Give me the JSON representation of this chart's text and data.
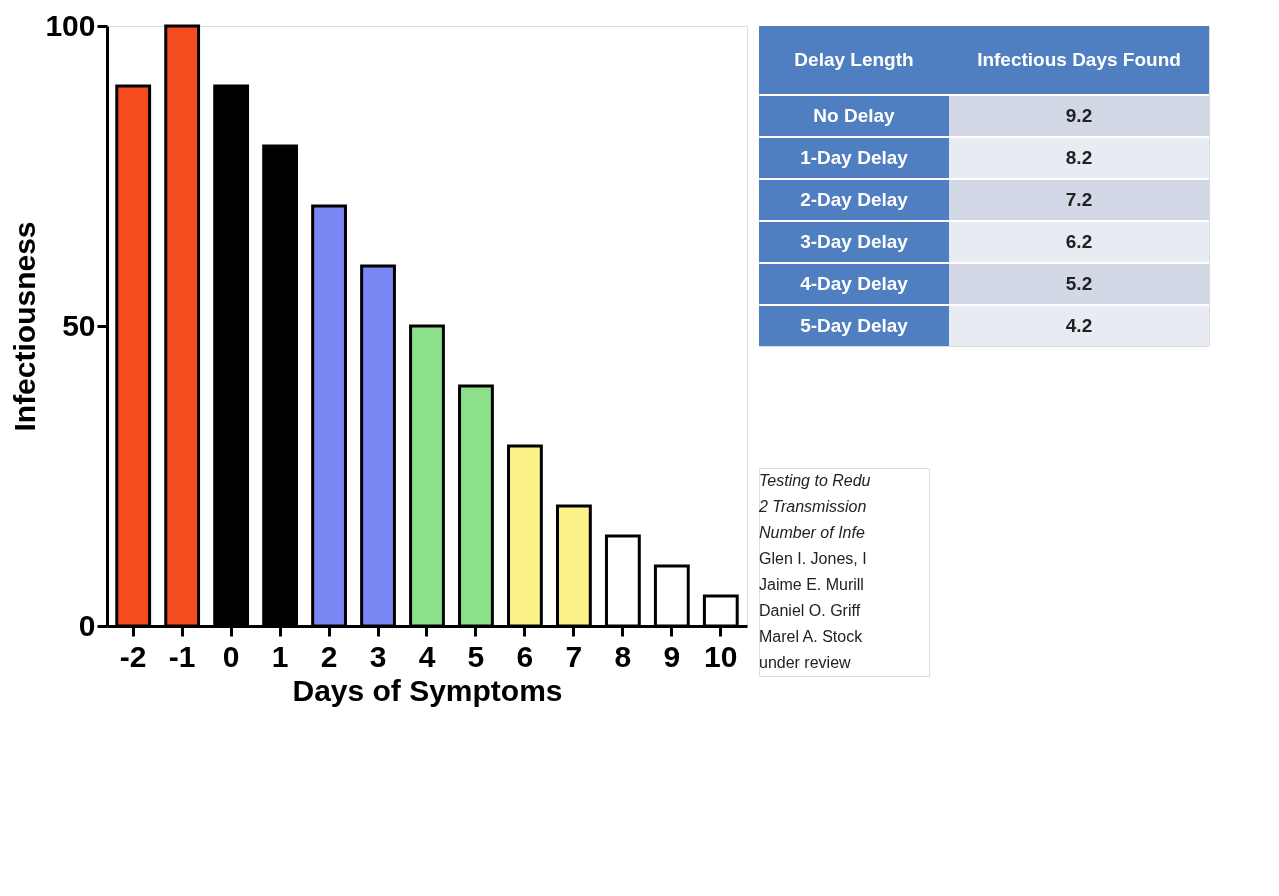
{
  "chart_data": {
    "type": "bar",
    "xlabel": "Days of Symptoms",
    "ylabel": "Infectiousness",
    "categories": [
      "-2",
      "-1",
      "0",
      "1",
      "2",
      "3",
      "4",
      "5",
      "6",
      "7",
      "8",
      "9",
      "10"
    ],
    "values": [
      90,
      100,
      90,
      80,
      70,
      60,
      50,
      40,
      30,
      20,
      15,
      10,
      5
    ],
    "colors": [
      "#f44b1f",
      "#f44b1f",
      "#000000",
      "#000000",
      "#7b86f5",
      "#7b86f5",
      "#8de08a",
      "#8de08a",
      "#fbf38a",
      "#fbf38a",
      "#ffffff",
      "#ffffff",
      "#ffffff"
    ],
    "ylim": [
      0,
      100
    ],
    "yticks": [
      0,
      50,
      100
    ],
    "grid": false,
    "annotations": [
      "Delay Length",
      "Infectious Days Found",
      "No Delay",
      "9.2",
      "1-Day Delay",
      "8.2",
      "2-Day Delay",
      "7.2",
      "3-Day Delay",
      "6.2",
      "4-Day Delay",
      "5.2",
      "5-Day Delay",
      "4.2",
      "Testing to Redu",
      "2 Transmission",
      "Number of Infe",
      "Glen I. Jones, I",
      "Jaime E. Murill",
      "Daniel O. Griff",
      "Marel A. Stock",
      "under review"
    ]
  }
}
